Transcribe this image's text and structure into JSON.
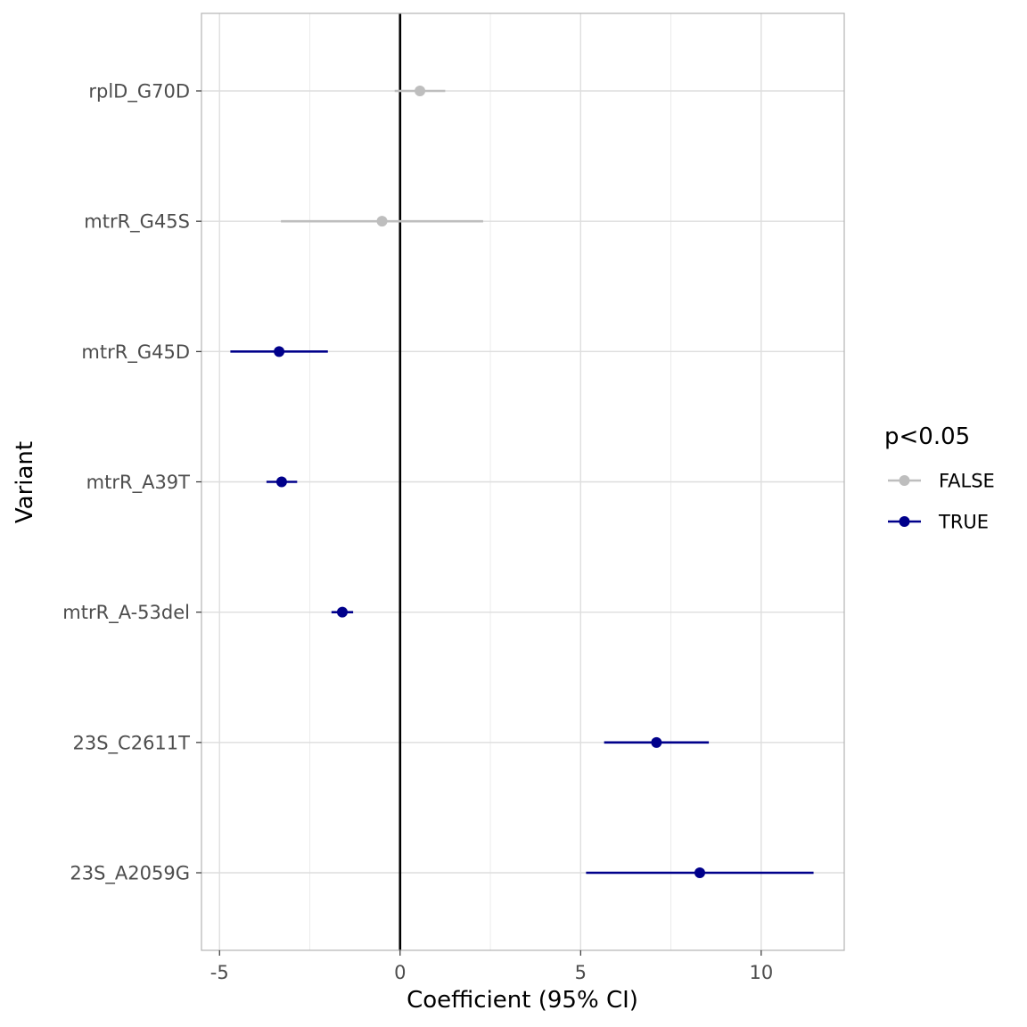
{
  "chart_data": {
    "type": "scatter",
    "subtype": "forest-plot",
    "xlabel": "Coefficient (95% CI)",
    "ylabel": "Variant",
    "xlim": [
      -5.5,
      12.3
    ],
    "x_ticks": [
      -5,
      0,
      5,
      10
    ],
    "x_tick_labels": [
      "-5",
      "0",
      "5",
      "10"
    ],
    "reference_line_x": 0,
    "grid": true,
    "legend": {
      "title": "p<0.05",
      "placement": "right",
      "entries": [
        {
          "label": "FALSE",
          "color": "#bebebe"
        },
        {
          "label": "TRUE",
          "color": "#00008b"
        }
      ]
    },
    "points": [
      {
        "variant": "rplD_G70D",
        "estimate": 0.55,
        "lower": -0.15,
        "upper": 1.25,
        "significant": "FALSE"
      },
      {
        "variant": "mtrR_G45S",
        "estimate": -0.5,
        "lower": -3.3,
        "upper": 2.3,
        "significant": "FALSE"
      },
      {
        "variant": "mtrR_G45D",
        "estimate": -3.35,
        "lower": -4.7,
        "upper": -2.0,
        "significant": "TRUE"
      },
      {
        "variant": "mtrR_A39T",
        "estimate": -3.28,
        "lower": -3.7,
        "upper": -2.85,
        "significant": "TRUE"
      },
      {
        "variant": "mtrR_A-53del",
        "estimate": -1.6,
        "lower": -1.9,
        "upper": -1.3,
        "significant": "TRUE"
      },
      {
        "variant": "23S_C2611T",
        "estimate": 7.1,
        "lower": 5.65,
        "upper": 8.55,
        "significant": "TRUE"
      },
      {
        "variant": "23S_A2059G",
        "estimate": 8.3,
        "lower": 5.15,
        "upper": 11.45,
        "significant": "TRUE"
      }
    ]
  }
}
